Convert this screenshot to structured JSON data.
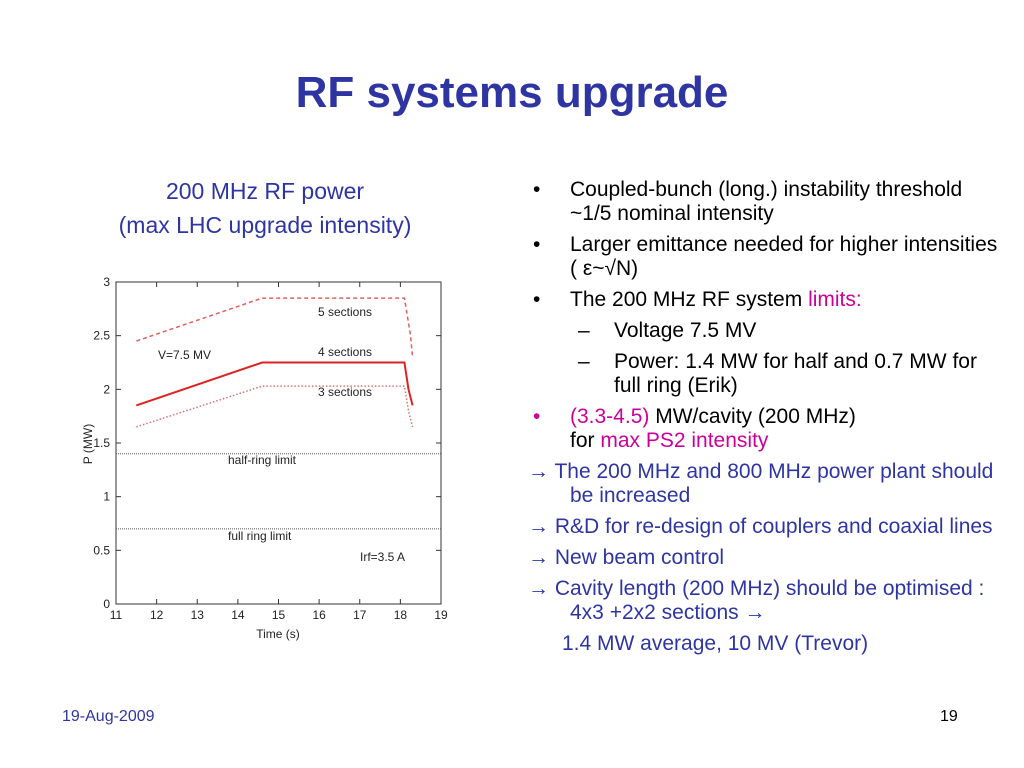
{
  "slide": {
    "title": "RF systems upgrade",
    "subtitle_line1": "200 MHz RF power",
    "subtitle_line2": "(max LHC upgrade intensity)",
    "date": "19-Aug-2009",
    "page": "19"
  },
  "bullets": [
    "Coupled-bunch (long.) instability threshold ~1/5 nominal intensity",
    "Larger emittance needed for higher intensities ( ε~√N)"
  ],
  "bullet3": {
    "text": "The 200 MHz RF system ",
    "highlight": "limits:"
  },
  "subbullets": [
    "Voltage  7.5 MV",
    "Power: 1.4 MW for half and 0.7 MW for full ring (Erik)"
  ],
  "bullet4": {
    "range": "(3.3-4.5)",
    "text1": " MW/cavity (200 MHz)",
    "text2": "for ",
    "highlight": "max PS2 intensity"
  },
  "arrows": [
    "→ The 200 MHz and 800 MHz power plant should be increased",
    "→ R&D for re-design of couplers and coaxial lines",
    "→ New beam control",
    "→ Cavity length (200 MHz) should be optimised : 4x3 +2x2 sections →"
  ],
  "arrow_continuation": "1.4 MW average, 10 MV (Trevor)",
  "chart_data": {
    "type": "line",
    "xlabel": "Time (s)",
    "ylabel": "P (MW)",
    "xlim": [
      11,
      19
    ],
    "ylim": [
      0,
      3
    ],
    "xticks": [
      "11",
      "12",
      "13",
      "14",
      "15",
      "16",
      "17",
      "18",
      "19"
    ],
    "yticks": [
      "0",
      "0.5",
      "1",
      "1.5",
      "2",
      "2.5",
      "3"
    ],
    "series": [
      {
        "name": "5 sections",
        "style": "dashed",
        "color": "#e06060",
        "x": [
          11.5,
          14.6,
          18.1,
          18.25,
          18.3
        ],
        "y": [
          2.45,
          2.85,
          2.85,
          2.5,
          2.3
        ]
      },
      {
        "name": "4 sections",
        "style": "solid",
        "color": "#dd2222",
        "x": [
          11.5,
          14.6,
          18.1,
          18.2,
          18.3
        ],
        "y": [
          1.85,
          2.25,
          2.25,
          2.0,
          1.85
        ]
      },
      {
        "name": "3 sections",
        "style": "dotted",
        "color": "#e07070",
        "x": [
          11.5,
          14.6,
          18.1,
          18.2,
          18.3
        ],
        "y": [
          1.65,
          2.03,
          2.03,
          1.8,
          1.65
        ]
      }
    ],
    "limits": [
      {
        "name": "half-ring limit",
        "y": 1.4
      },
      {
        "name": "full ring limit",
        "y": 0.7
      }
    ],
    "annotations": [
      "V=7.5 MV",
      "Irf=3.5 A"
    ],
    "grid": false
  }
}
